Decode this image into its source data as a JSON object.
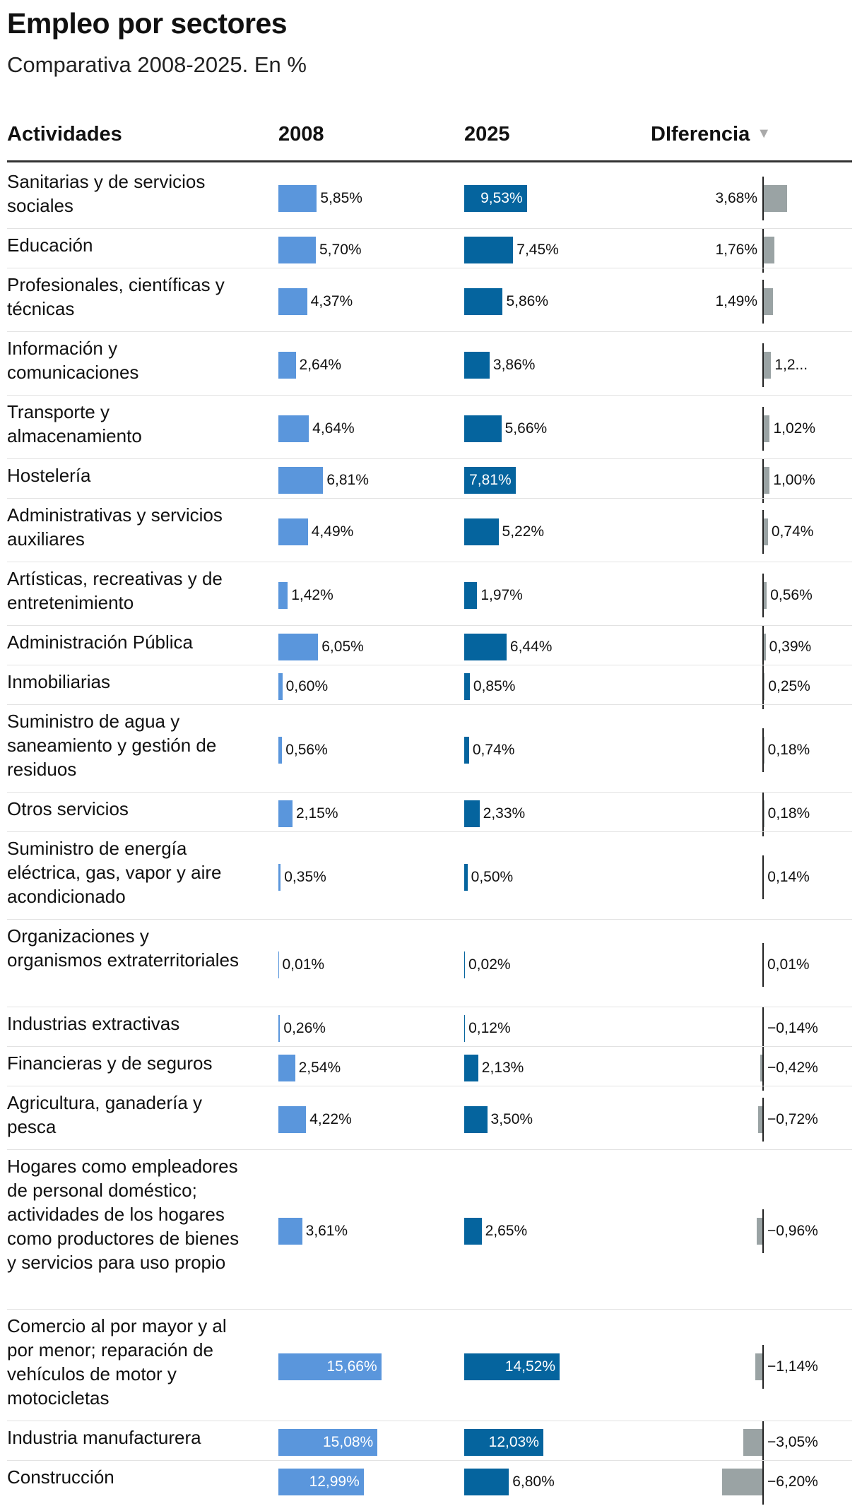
{
  "title": "Empleo por sectores",
  "subtitle": "Comparativa 2008-2025. En %",
  "header": {
    "col_activities": "Actividades",
    "col_2008": "2008",
    "col_2025": "2025",
    "col_diff": "DIferencia",
    "sort_icon": "triangle-down-icon"
  },
  "colors": {
    "bar_2008": "#5a96dc",
    "bar_2025": "#05649e",
    "bar_diff": "#9aa3a4"
  },
  "chart_data": {
    "type": "table",
    "title": "Empleo por sectores",
    "subtitle": "Comparativa 2008-2025. En %",
    "columns": [
      "Actividades",
      "2008",
      "2025",
      "DIferencia"
    ],
    "sort": {
      "column": "DIferencia",
      "order": "descending"
    },
    "rows": [
      {
        "activity": "Sanitarias y de servicios sociales",
        "v2008": 5.85,
        "v2025": 9.53,
        "diff": 3.68,
        "t2008": "5,85%",
        "t2025": "9,53%",
        "tdiff": "3,68%"
      },
      {
        "activity": "Educación",
        "v2008": 5.7,
        "v2025": 7.45,
        "diff": 1.76,
        "t2008": "5,70%",
        "t2025": "7,45%",
        "tdiff": "1,76%"
      },
      {
        "activity": "Profesionales, científicas y técnicas",
        "v2008": 4.37,
        "v2025": 5.86,
        "diff": 1.49,
        "t2008": "4,37%",
        "t2025": "5,86%",
        "tdiff": "1,49%"
      },
      {
        "activity": "Información y comunicaciones",
        "v2008": 2.64,
        "v2025": 3.86,
        "diff": 1.22,
        "t2008": "2,64%",
        "t2025": "3,86%",
        "tdiff": "1,2..."
      },
      {
        "activity": "Transporte y almacenamiento",
        "v2008": 4.64,
        "v2025": 5.66,
        "diff": 1.02,
        "t2008": "4,64%",
        "t2025": "5,66%",
        "tdiff": "1,02%"
      },
      {
        "activity": "Hostelería",
        "v2008": 6.81,
        "v2025": 7.81,
        "diff": 1.0,
        "t2008": "6,81%",
        "t2025": "7,81%",
        "tdiff": "1,00%"
      },
      {
        "activity": "Administrativas y servicios auxiliares",
        "v2008": 4.49,
        "v2025": 5.22,
        "diff": 0.74,
        "t2008": "4,49%",
        "t2025": "5,22%",
        "tdiff": "0,74%"
      },
      {
        "activity": "Artísticas, recreativas y de entretenimiento",
        "v2008": 1.42,
        "v2025": 1.97,
        "diff": 0.56,
        "t2008": "1,42%",
        "t2025": "1,97%",
        "tdiff": "0,56%"
      },
      {
        "activity": "Administración Pública",
        "v2008": 6.05,
        "v2025": 6.44,
        "diff": 0.39,
        "t2008": "6,05%",
        "t2025": "6,44%",
        "tdiff": "0,39%"
      },
      {
        "activity": "Inmobiliarias",
        "v2008": 0.6,
        "v2025": 0.85,
        "diff": 0.25,
        "t2008": "0,60%",
        "t2025": "0,85%",
        "tdiff": "0,25%"
      },
      {
        "activity": "Suministro de agua y saneamiento y gestión de residuos",
        "v2008": 0.56,
        "v2025": 0.74,
        "diff": 0.18,
        "t2008": "0,56%",
        "t2025": "0,74%",
        "tdiff": "0,18%"
      },
      {
        "activity": "Otros servicios",
        "v2008": 2.15,
        "v2025": 2.33,
        "diff": 0.18,
        "t2008": "2,15%",
        "t2025": "2,33%",
        "tdiff": "0,18%"
      },
      {
        "activity": "Suministro de energía eléctrica, gas, vapor y aire acondicionado",
        "v2008": 0.35,
        "v2025": 0.5,
        "diff": 0.14,
        "t2008": "0,35%",
        "t2025": "0,50%",
        "tdiff": "0,14%"
      },
      {
        "activity": "Organizaciones y organismos extraterritoriales",
        "v2008": 0.01,
        "v2025": 0.02,
        "diff": 0.01,
        "t2008": "0,01%",
        "t2025": "0,02%",
        "tdiff": "0,01%"
      },
      {
        "activity": "Industrias extractivas",
        "v2008": 0.26,
        "v2025": 0.12,
        "diff": -0.14,
        "t2008": "0,26%",
        "t2025": "0,12%",
        "tdiff": "−0,14%"
      },
      {
        "activity": "Financieras y de seguros",
        "v2008": 2.54,
        "v2025": 2.13,
        "diff": -0.42,
        "t2008": "2,54%",
        "t2025": "2,13%",
        "tdiff": "−0,42%"
      },
      {
        "activity": "Agricultura, ganadería y pesca",
        "v2008": 4.22,
        "v2025": 3.5,
        "diff": -0.72,
        "t2008": "4,22%",
        "t2025": "3,50%",
        "tdiff": "−0,72%"
      },
      {
        "activity": "Hogares como empleadores de personal doméstico; actividades de los hogares como productores de bienes y servicios para uso propio",
        "v2008": 3.61,
        "v2025": 2.65,
        "diff": -0.96,
        "t2008": "3,61%",
        "t2025": "2,65%",
        "tdiff": "−0,96%"
      },
      {
        "activity": "Comercio al por mayor y al por menor; reparación de vehículos de motor y motocicletas",
        "v2008": 15.66,
        "v2025": 14.52,
        "diff": -1.14,
        "t2008": "15,66%",
        "t2025": "14,52%",
        "tdiff": "−1,14%"
      },
      {
        "activity": "Industria manufacturera",
        "v2008": 15.08,
        "v2025": 12.03,
        "diff": -3.05,
        "t2008": "15,08%",
        "t2025": "12,03%",
        "tdiff": "−3,05%"
      },
      {
        "activity": "Construcción",
        "v2008": 12.99,
        "v2025": 6.8,
        "diff": -6.2,
        "t2008": "12,99%",
        "t2025": "6,80%",
        "tdiff": "−6,20%"
      }
    ]
  }
}
